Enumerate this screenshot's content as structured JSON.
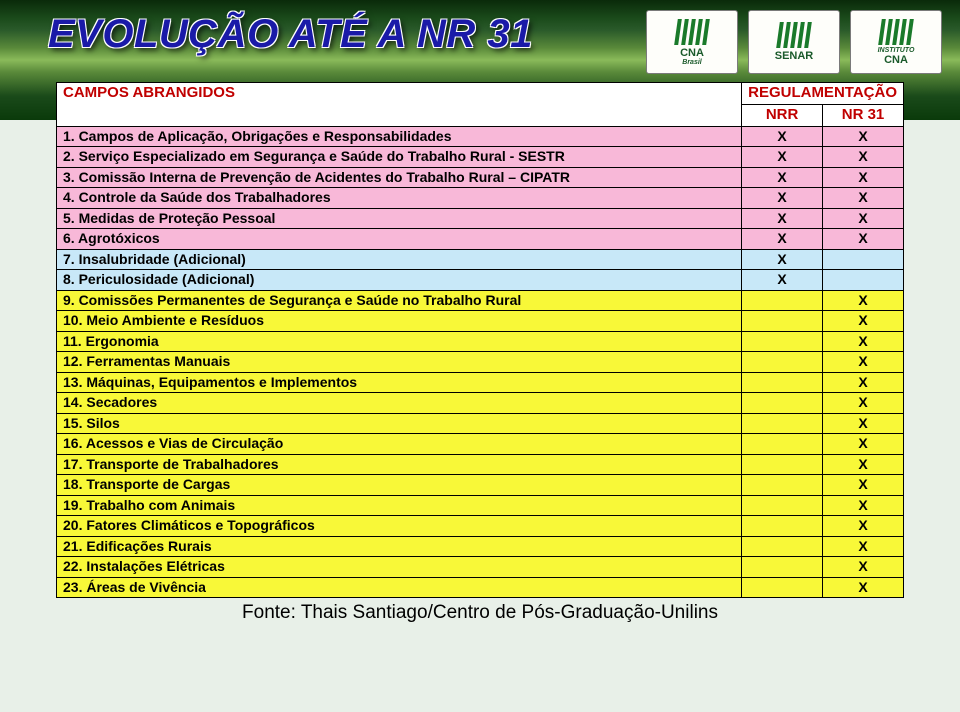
{
  "title": "EVOLUÇÃO ATÉ A NR 31",
  "logos": [
    {
      "text": "CNA",
      "sub": "Brasil"
    },
    {
      "text": "SENAR",
      "sub": ""
    },
    {
      "text": "INSTITUTO",
      "sub": "CNA"
    }
  ],
  "header": {
    "campos": "CAMPOS ABRANGIDOS",
    "reg": "REGULAMENTAÇÃO",
    "nrr": "NRR",
    "nr31": "NR 31"
  },
  "colors": {
    "pink": "#f8b8d8",
    "blue": "#c8e8f8",
    "yellow": "#f8f838",
    "title_color": "#1a1aa8",
    "header_text": "#c00000",
    "border": "#000000"
  },
  "rows": [
    {
      "group": "pink",
      "label": "1. Campos de Aplicação, Obrigações e Responsabilidades",
      "nrr": "X",
      "nr31": "X"
    },
    {
      "group": "pink",
      "label": "2. Serviço Especializado em Segurança e Saúde do Trabalho Rural - SESTR",
      "nrr": "X",
      "nr31": "X"
    },
    {
      "group": "pink",
      "label": "3. Comissão Interna de Prevenção de Acidentes do Trabalho Rural – CIPATR",
      "nrr": "X",
      "nr31": "X"
    },
    {
      "group": "pink",
      "label": "4. Controle da Saúde dos Trabalhadores",
      "nrr": "X",
      "nr31": "X"
    },
    {
      "group": "pink",
      "label": "5. Medidas de Proteção Pessoal",
      "nrr": "X",
      "nr31": "X"
    },
    {
      "group": "pink",
      "label": "6. Agrotóxicos",
      "nrr": "X",
      "nr31": "X"
    },
    {
      "group": "blue",
      "label": "7. Insalubridade (Adicional)",
      "nrr": "X",
      "nr31": ""
    },
    {
      "group": "blue",
      "label": "8. Periculosidade (Adicional)",
      "nrr": "X",
      "nr31": ""
    },
    {
      "group": "yellow",
      "label": "9. Comissões Permanentes de Segurança e Saúde no Trabalho Rural",
      "nrr": "",
      "nr31": "X"
    },
    {
      "group": "yellow",
      "label": "10. Meio Ambiente e Resíduos",
      "nrr": "",
      "nr31": "X"
    },
    {
      "group": "yellow",
      "label": "11. Ergonomia",
      "nrr": "",
      "nr31": "X"
    },
    {
      "group": "yellow",
      "label": "12. Ferramentas Manuais",
      "nrr": "",
      "nr31": "X"
    },
    {
      "group": "yellow",
      "label": "13. Máquinas, Equipamentos e Implementos",
      "nrr": "",
      "nr31": "X"
    },
    {
      "group": "yellow",
      "label": "14. Secadores",
      "nrr": "",
      "nr31": "X"
    },
    {
      "group": "yellow",
      "label": "15. Silos",
      "nrr": "",
      "nr31": "X"
    },
    {
      "group": "yellow",
      "label": "16. Acessos e Vias de Circulação",
      "nrr": "",
      "nr31": "X"
    },
    {
      "group": "yellow",
      "label": "17. Transporte de Trabalhadores",
      "nrr": "",
      "nr31": "X"
    },
    {
      "group": "yellow",
      "label": "18. Transporte de Cargas",
      "nrr": "",
      "nr31": "X"
    },
    {
      "group": "yellow",
      "label": "19. Trabalho com Animais",
      "nrr": "",
      "nr31": "X"
    },
    {
      "group": "yellow",
      "label": "20. Fatores Climáticos e Topográficos",
      "nrr": "",
      "nr31": "X"
    },
    {
      "group": "yellow",
      "label": "21. Edificações Rurais",
      "nrr": "",
      "nr31": "X"
    },
    {
      "group": "yellow",
      "label": "22. Instalações Elétricas",
      "nrr": "",
      "nr31": "X"
    },
    {
      "group": "yellow",
      "label": "23. Áreas de Vivência",
      "nrr": "",
      "nr31": "X"
    }
  ],
  "footer_source": "Fonte: Thais Santiago/Centro de Pós-Graduação-Unilins"
}
